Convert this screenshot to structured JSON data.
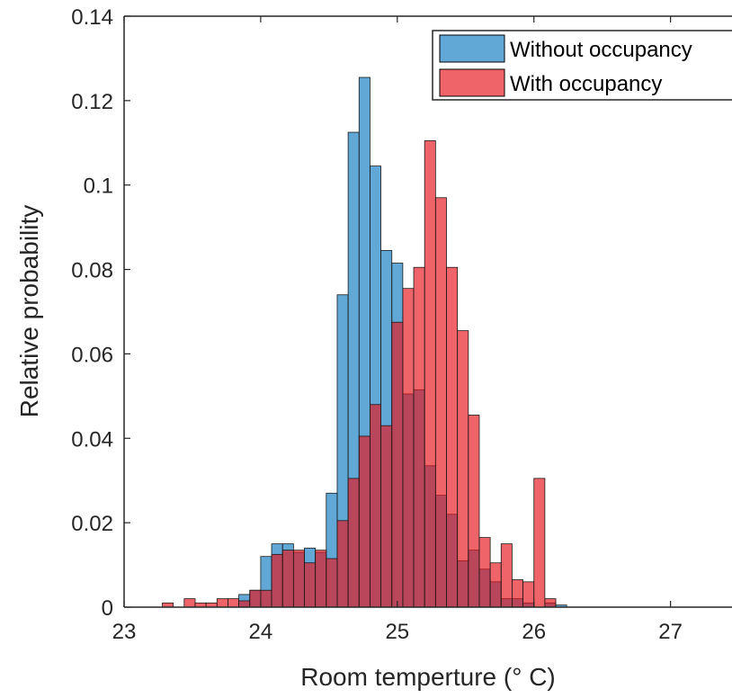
{
  "chart_data": {
    "type": "bar",
    "xlabel": "Room temperture (° C)",
    "ylabel": "Relative probability",
    "xlim": [
      23,
      27.45
    ],
    "ylim": [
      0,
      0.14
    ],
    "x_ticks": [
      "23",
      "24",
      "25",
      "26",
      "27"
    ],
    "y_ticks": [
      "0",
      "0.02",
      "0.04",
      "0.06",
      "0.08",
      "0.1",
      "0.12",
      "0.14"
    ],
    "bin_width": 0.08,
    "bin_start": 23.28,
    "legend_position": "top-right",
    "series": [
      {
        "name": "Without occupancy",
        "color": "#0072BD",
        "opacity": 0.62,
        "values": [
          0,
          0,
          0,
          0,
          0,
          0,
          0,
          0.003,
          0.004,
          0.012,
          0.015,
          0.015,
          0.013,
          0.014,
          0.013,
          0.027,
          0.074,
          0.1125,
          0.1255,
          0.1045,
          0.0845,
          0.0815,
          0.0505,
          0.0515,
          0.0335,
          0.0265,
          0.022,
          0.011,
          0.0135,
          0.009,
          0.006,
          0.002,
          0.002,
          0.001,
          0,
          0.001,
          0.0005,
          0,
          0,
          0,
          0,
          0,
          0,
          0,
          0,
          0,
          0,
          0,
          0,
          0,
          0,
          0,
          0,
          0,
          0
        ]
      },
      {
        "name": "With occupancy",
        "color": "#E7141A",
        "opacity": 0.66,
        "values": [
          0.001,
          0,
          0.002,
          0.001,
          0.001,
          0.002,
          0.002,
          0.0015,
          0.004,
          0.004,
          0.0125,
          0.0135,
          0.0135,
          0.0105,
          0.0135,
          0.0115,
          0.0205,
          0.0305,
          0.0405,
          0.048,
          0.043,
          0.0675,
          0.0755,
          0.0805,
          0.1105,
          0.097,
          0.0805,
          0.0655,
          0.0455,
          0.0165,
          0.0105,
          0.015,
          0.0065,
          0.006,
          0.0305,
          0.002,
          0,
          0,
          0,
          0,
          0,
          0,
          0,
          0,
          0,
          0,
          0,
          0,
          0,
          0,
          0,
          0,
          0,
          0,
          0
        ]
      }
    ]
  }
}
